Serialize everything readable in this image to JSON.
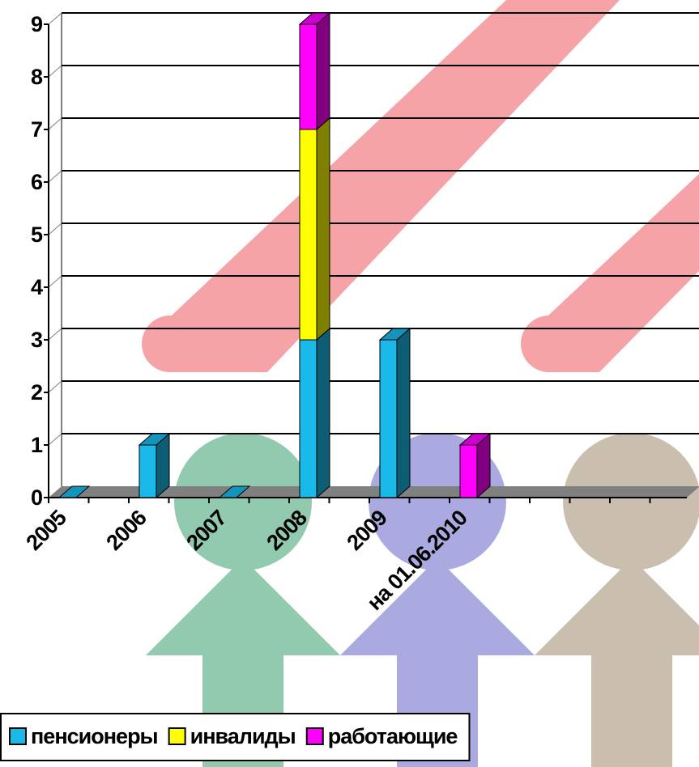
{
  "chart_data": {
    "type": "bar",
    "stacked": true,
    "categories": [
      "2005",
      "2006",
      "2007",
      "2008",
      "2009",
      "на 01.06.2010"
    ],
    "series": [
      {
        "name": "пенсионеры",
        "color": "#19b9ea",
        "values": [
          0,
          1,
          0,
          3,
          3,
          0
        ]
      },
      {
        "name": "инвалиды",
        "color": "#ffff00",
        "values": [
          0,
          0,
          0,
          4,
          0,
          0
        ]
      },
      {
        "name": "работающие",
        "color": "#ff00ff",
        "values": [
          0,
          0,
          0,
          2,
          0,
          1
        ]
      }
    ],
    "ylim": [
      0,
      9
    ],
    "yticks": [
      0,
      1,
      2,
      3,
      4,
      5,
      6,
      7,
      8,
      9
    ],
    "grid": true,
    "legend": "bottom-left"
  }
}
